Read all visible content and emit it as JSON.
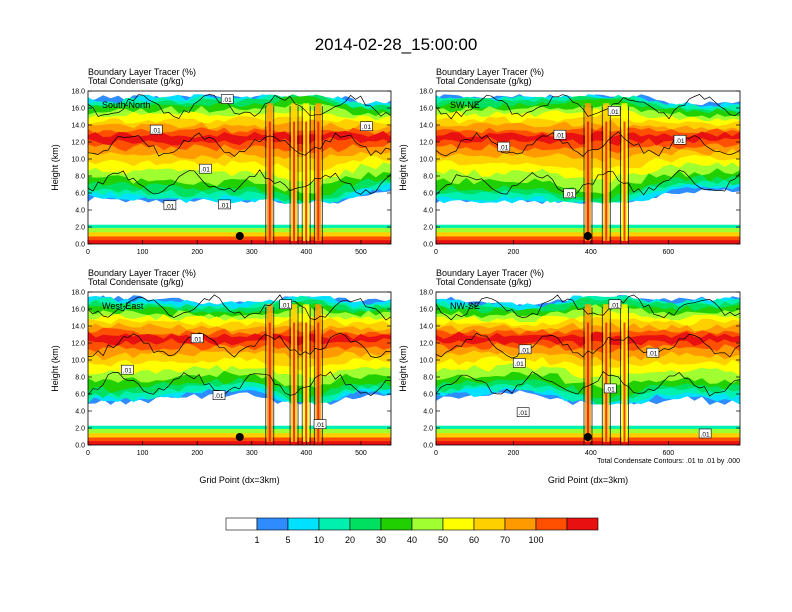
{
  "page_title": "2014-02-28_15:00:00",
  "colors": {
    "levels": [
      "#ffffff",
      "#2f8cff",
      "#00e0ff",
      "#00f0b0",
      "#00e060",
      "#20d000",
      "#a0ff30",
      "#ffff00",
      "#ffd000",
      "#ff9a00",
      "#ff5000",
      "#e81010"
    ],
    "contour": "#000000"
  },
  "colorbar": {
    "labels": [
      "1",
      "5",
      "10",
      "20",
      "30",
      "40",
      "50",
      "60",
      "70",
      "100"
    ]
  },
  "footnote": "Total Condensate Contours: .01 to .01 by .000",
  "chart_data": [
    {
      "type": "heatmap",
      "name": "South-North",
      "title_line1": "Boundary Layer Tracer   (%)",
      "title_line2": "Total Condensate   (g/kg)",
      "panel_label": "South-North",
      "ylabel": "Height (km)",
      "xlabel": "",
      "xlim": [
        0,
        555
      ],
      "ylim": [
        0,
        18
      ],
      "xticks": [
        0,
        100,
        200,
        300,
        400,
        500
      ],
      "yticks": [
        0,
        2,
        4,
        6,
        8,
        10,
        12,
        14,
        16,
        18
      ],
      "ytick_labels": [
        "0.0",
        "2.0",
        "4.0",
        "6.0",
        "8.0",
        "10.0",
        "12.0",
        "14.0",
        "16.0",
        "18.0"
      ],
      "marker_x": 278,
      "contour_labels": [
        {
          "text": ".01",
          "x": 255,
          "y": 17
        },
        {
          "text": ".01",
          "x": 125,
          "y": 13.4
        },
        {
          "text": ".01",
          "x": 510,
          "y": 13.8
        },
        {
          "text": ".01",
          "x": 215,
          "y": 8.8
        },
        {
          "text": ".01",
          "x": 150,
          "y": 4.5
        },
        {
          "text": ".01",
          "x": 250,
          "y": 4.6
        }
      ]
    },
    {
      "type": "heatmap",
      "name": "SW-NE",
      "title_line1": "Boundary Layer Tracer   (%)",
      "title_line2": "Total Condensate   (g/kg)",
      "panel_label": "SW-NE",
      "ylabel": "Height (km)",
      "xlabel": "",
      "xlim": [
        0,
        785
      ],
      "ylim": [
        0,
        18
      ],
      "xticks": [
        0,
        200,
        400,
        600
      ],
      "yticks": [
        0,
        2,
        4,
        6,
        8,
        10,
        12,
        14,
        16,
        18
      ],
      "ytick_labels": [
        "0.0",
        "2.0",
        "4.0",
        "6.0",
        "8.0",
        "10.0",
        "12.0",
        "14.0",
        "16.0",
        "18.0"
      ],
      "marker_x": 392,
      "contour_labels": [
        {
          "text": ".01",
          "x": 460,
          "y": 15.6
        },
        {
          "text": ".01",
          "x": 320,
          "y": 12.8
        },
        {
          "text": ".01",
          "x": 175,
          "y": 11.4
        },
        {
          "text": ".01",
          "x": 630,
          "y": 12.2
        },
        {
          "text": ".01",
          "x": 345,
          "y": 5.9
        }
      ]
    },
    {
      "type": "heatmap",
      "name": "West-East",
      "title_line1": "Boundary Layer Tracer   (%)",
      "title_line2": "Total Condensate   (g/kg)",
      "panel_label": "West-East",
      "ylabel": "Height (km)",
      "xlabel": "Grid Point (dx=3km)",
      "xlim": [
        0,
        555
      ],
      "ylim": [
        0,
        18
      ],
      "xticks": [
        0,
        100,
        200,
        300,
        400,
        500
      ],
      "yticks": [
        0,
        2,
        4,
        6,
        8,
        10,
        12,
        14,
        16,
        18
      ],
      "ytick_labels": [
        "0.0",
        "2.0",
        "4.0",
        "6.0",
        "8.0",
        "10.0",
        "12.0",
        "14.0",
        "16.0",
        "18.0"
      ],
      "marker_x": 278,
      "contour_labels": [
        {
          "text": ".01",
          "x": 362,
          "y": 16.5
        },
        {
          "text": ".01",
          "x": 200,
          "y": 12.5
        },
        {
          "text": ".01",
          "x": 72,
          "y": 8.8
        },
        {
          "text": ".01",
          "x": 240,
          "y": 5.8
        },
        {
          "text": ".01",
          "x": 425,
          "y": 2.4
        }
      ]
    },
    {
      "type": "heatmap",
      "name": "NW-SE",
      "title_line1": "Boundary Layer Tracer   (%)",
      "title_line2": "Total Condensate   (g/kg)",
      "panel_label": "NW-SE",
      "ylabel": "Height (km)",
      "xlabel": "Grid Point (dx=3km)",
      "xlim": [
        0,
        785
      ],
      "ylim": [
        0,
        18
      ],
      "xticks": [
        0,
        200,
        400,
        600
      ],
      "yticks": [
        0,
        2,
        4,
        6,
        8,
        10,
        12,
        14,
        16,
        18
      ],
      "ytick_labels": [
        "0.0",
        "2.0",
        "4.0",
        "6.0",
        "8.0",
        "10.0",
        "12.0",
        "14.0",
        "16.0",
        "18.0"
      ],
      "marker_x": 392,
      "contour_labels": [
        {
          "text": ".01",
          "x": 462,
          "y": 16.5
        },
        {
          "text": ".01",
          "x": 230,
          "y": 11.2
        },
        {
          "text": ".01",
          "x": 215,
          "y": 9.6
        },
        {
          "text": ".01",
          "x": 560,
          "y": 10.8
        },
        {
          "text": ".01",
          "x": 450,
          "y": 6.6
        },
        {
          "text": ".01",
          "x": 225,
          "y": 3.8
        },
        {
          "text": ".01",
          "x": 695,
          "y": 1.3
        }
      ]
    }
  ]
}
